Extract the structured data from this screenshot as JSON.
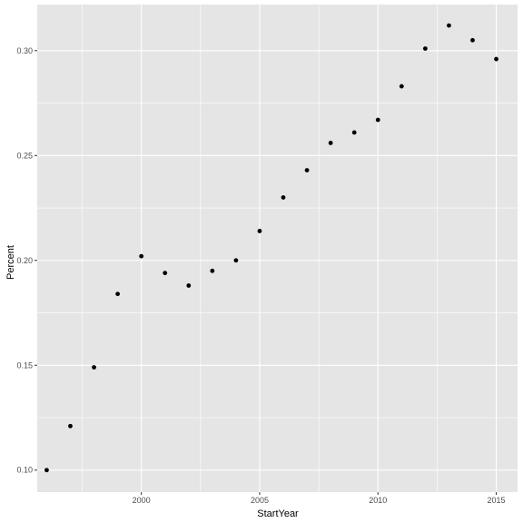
{
  "chart_data": {
    "type": "scatter",
    "title": "",
    "xlabel": "StartYear",
    "ylabel": "Percent",
    "xlim": [
      1995.6,
      2015.9
    ],
    "ylim": [
      0.0895,
      0.322
    ],
    "x_ticks": [
      2000,
      2005,
      2010,
      2015
    ],
    "x_tick_labels": [
      "2000",
      "2005",
      "2010",
      "2015"
    ],
    "y_ticks": [
      0.1,
      0.15,
      0.2,
      0.25,
      0.3
    ],
    "y_tick_labels": [
      "0.10",
      "0.15",
      "0.20",
      "0.25",
      "0.30"
    ],
    "grid": true,
    "panel_color": "#e5e5e5",
    "grid_color": "#ffffff",
    "point_color": "#000000",
    "x": [
      1996,
      1997,
      1998,
      1999,
      2000,
      2001,
      2002,
      2003,
      2004,
      2005,
      2006,
      2007,
      2008,
      2009,
      2010,
      2011,
      2012,
      2013,
      2014,
      2015
    ],
    "y": [
      0.1,
      0.121,
      0.149,
      0.184,
      0.202,
      0.194,
      0.188,
      0.195,
      0.2,
      0.214,
      0.23,
      0.243,
      0.256,
      0.261,
      0.267,
      0.283,
      0.301,
      0.312,
      0.305,
      0.296
    ]
  }
}
